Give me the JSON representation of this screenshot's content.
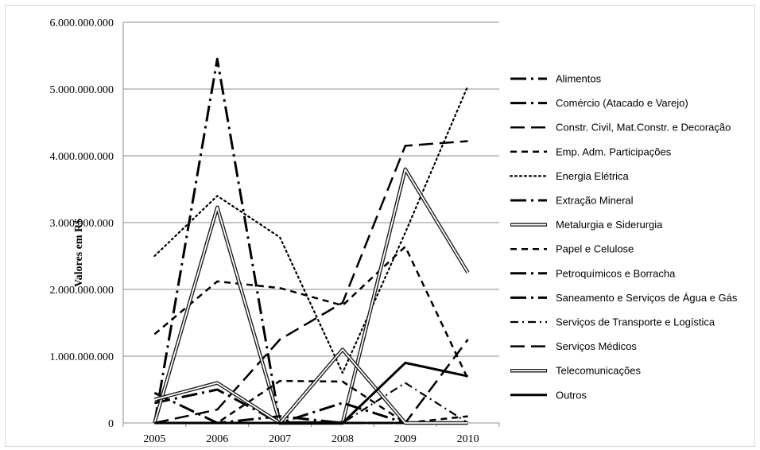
{
  "chart_data": {
    "type": "line",
    "ylabel": "Valores em R$",
    "x": [
      "2005",
      "2006",
      "2007",
      "2008",
      "2009",
      "2010"
    ],
    "ylim": [
      0,
      6000000000
    ],
    "yticks": [
      0,
      1000000000,
      2000000000,
      3000000000,
      4000000000,
      5000000000,
      6000000000
    ],
    "ytick_labels": [
      "0",
      "1.000.000.000",
      "2.000.000.000",
      "3.000.000.000",
      "4.000.000.000",
      "5.000.000.000",
      "6.000.000.000"
    ],
    "grid": "horizontal",
    "legend_position": "right",
    "series": [
      {
        "name": "Alimentos",
        "style": "longdashdot",
        "values": [
          450000000,
          0,
          0,
          0,
          0,
          0
        ]
      },
      {
        "name": "Comércio (Atacado e Varejo)",
        "style": "longdashdot",
        "values": [
          300000000,
          500000000,
          0,
          0,
          0,
          0
        ]
      },
      {
        "name": "Constr. Civil, Mat.Constr. e Decoração",
        "style": "longdash",
        "values": [
          0,
          200000000,
          1250000000,
          1800000000,
          4150000000,
          4220000000
        ]
      },
      {
        "name": "Emp. Adm. Participações",
        "style": "dash",
        "values": [
          1330000000,
          2120000000,
          2020000000,
          1760000000,
          2640000000,
          660000000
        ]
      },
      {
        "name": "Energia Elétrica",
        "style": "dotted",
        "values": [
          2500000000,
          3400000000,
          2780000000,
          750000000,
          2850000000,
          5050000000
        ]
      },
      {
        "name": "Extração Mineral",
        "style": "longdashdot",
        "values": [
          0,
          5450000000,
          0,
          0,
          0,
          0
        ]
      },
      {
        "name": "Metalurgia e Siderurgia",
        "style": "double",
        "values": [
          0,
          3230000000,
          0,
          0,
          3800000000,
          2250000000
        ]
      },
      {
        "name": "Papel e Celulose",
        "style": "dash",
        "values": [
          0,
          0,
          630000000,
          620000000,
          0,
          100000000
        ]
      },
      {
        "name": "Petroquímicos e Borracha",
        "style": "longdashdot",
        "values": [
          0,
          0,
          100000000,
          0,
          0,
          0
        ]
      },
      {
        "name": "Saneamento e Serviços de Água e Gás",
        "style": "longdashdot",
        "values": [
          0,
          0,
          0,
          300000000,
          0,
          0
        ]
      },
      {
        "name": "Serviços de Transporte e Logística",
        "style": "dashdot",
        "values": [
          0,
          0,
          0,
          0,
          600000000,
          0
        ]
      },
      {
        "name": "Serviços Médicos",
        "style": "longdash",
        "values": [
          0,
          0,
          0,
          0,
          0,
          1250000000
        ]
      },
      {
        "name": "Telecomunicações",
        "style": "double",
        "values": [
          350000000,
          600000000,
          0,
          1100000000,
          0,
          0
        ]
      },
      {
        "name": "Outros",
        "style": "solid",
        "values": [
          0,
          0,
          0,
          0,
          900000000,
          700000000
        ]
      }
    ]
  }
}
